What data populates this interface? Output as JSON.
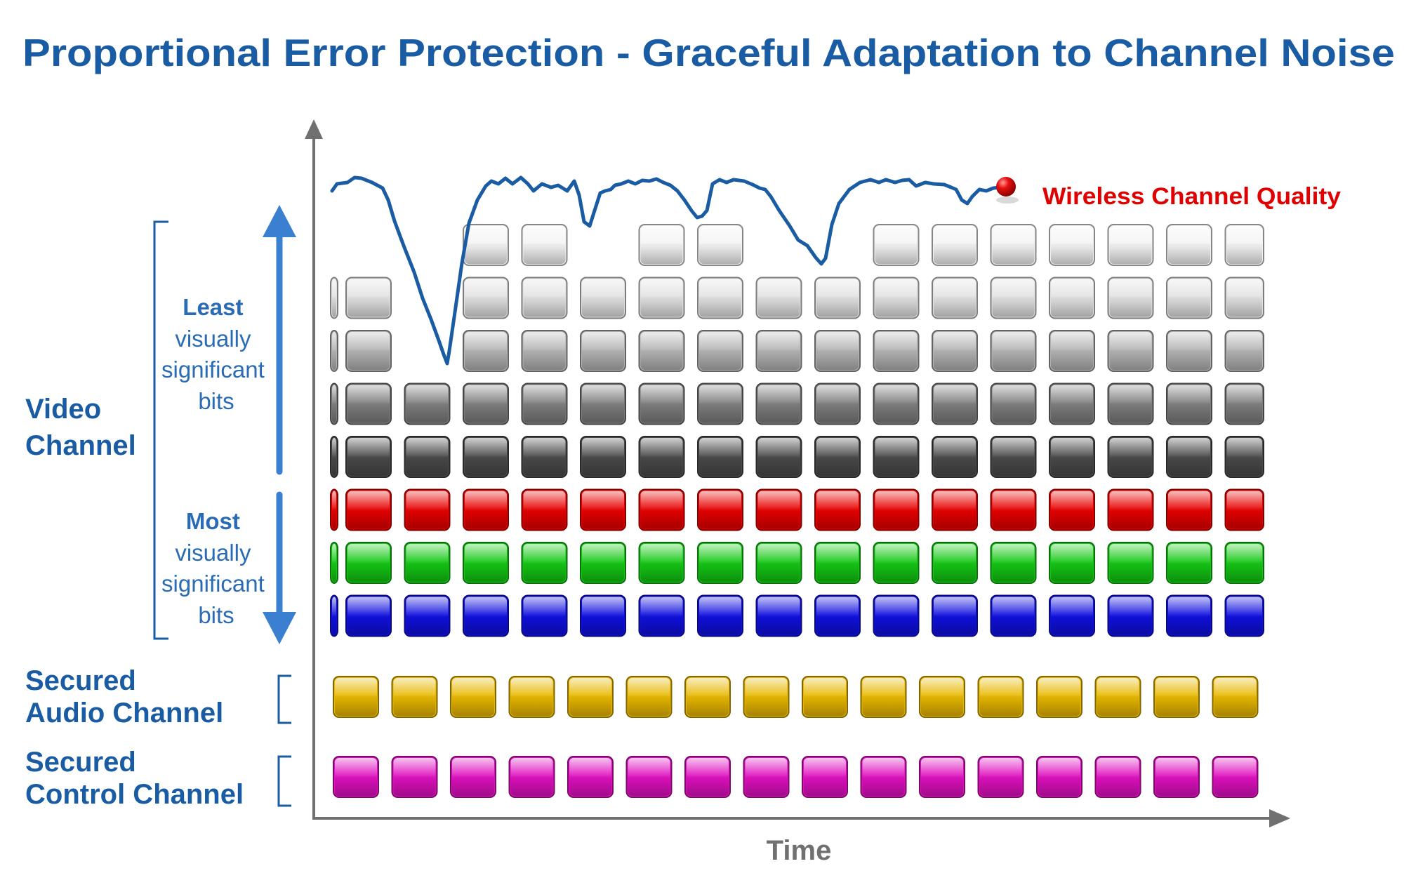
{
  "title": "Proportional Error Protection - Graceful Adaptation to Channel Noise",
  "quality_label": "Wireless Channel Quality",
  "x_axis_label": "Time",
  "labels": {
    "video_channel": [
      "Video",
      "Channel"
    ],
    "least_bits": [
      "Least",
      "visually",
      "significant",
      "bits"
    ],
    "most_bits": [
      "Most",
      "visually",
      "significant",
      "bits"
    ],
    "audio_channel": [
      "Secured",
      "Audio Channel"
    ],
    "control_channel": [
      "Secured",
      "Control Channel"
    ]
  },
  "colors": {
    "title": "#1a5ca3",
    "channel_labels": "#1a5ca3",
    "sub_labels": "#2a6bb5",
    "arrow": "#3a7fd0",
    "quality_curve": "#1a5ca3",
    "quality_label": "#e00000",
    "axes": "#707070",
    "time_label": "#707070",
    "bracket": "#1a5ca3"
  },
  "video_rows": [
    {
      "name": "bit-row-7",
      "color": "#f4f4f4",
      "present": [
        0,
        0,
        1,
        1,
        0,
        1,
        1,
        0,
        0,
        1,
        1,
        1,
        1,
        1,
        1,
        1
      ]
    },
    {
      "name": "bit-row-6",
      "color": "#e2e2e2",
      "present": [
        1,
        0,
        1,
        1,
        1,
        1,
        1,
        1,
        1,
        1,
        1,
        1,
        1,
        1,
        1,
        1
      ]
    },
    {
      "name": "bit-row-5",
      "color": "#b4b4b4",
      "present": [
        1,
        0,
        1,
        1,
        1,
        1,
        1,
        1,
        1,
        1,
        1,
        1,
        1,
        1,
        1,
        1
      ]
    },
    {
      "name": "bit-row-4",
      "color": "#7e7e7e",
      "present": [
        1,
        1,
        1,
        1,
        1,
        1,
        1,
        1,
        1,
        1,
        1,
        1,
        1,
        1,
        1,
        1
      ]
    },
    {
      "name": "bit-row-3",
      "color": "#4a4a4a",
      "present": [
        1,
        1,
        1,
        1,
        1,
        1,
        1,
        1,
        1,
        1,
        1,
        1,
        1,
        1,
        1,
        1
      ]
    },
    {
      "name": "red-row",
      "color": "#e80000",
      "present": [
        1,
        1,
        1,
        1,
        1,
        1,
        1,
        1,
        1,
        1,
        1,
        1,
        1,
        1,
        1,
        1
      ]
    },
    {
      "name": "green-row",
      "color": "#14c814",
      "present": [
        1,
        1,
        1,
        1,
        1,
        1,
        1,
        1,
        1,
        1,
        1,
        1,
        1,
        1,
        1,
        1
      ]
    },
    {
      "name": "blue-row",
      "color": "#1010e0",
      "present": [
        1,
        1,
        1,
        1,
        1,
        1,
        1,
        1,
        1,
        1,
        1,
        1,
        1,
        1,
        1,
        1
      ]
    }
  ],
  "audio_row": {
    "name": "audio-row",
    "color": "#e8b800",
    "count": 16
  },
  "control_row": {
    "name": "control-row",
    "color": "#e010c0",
    "count": 16
  }
}
